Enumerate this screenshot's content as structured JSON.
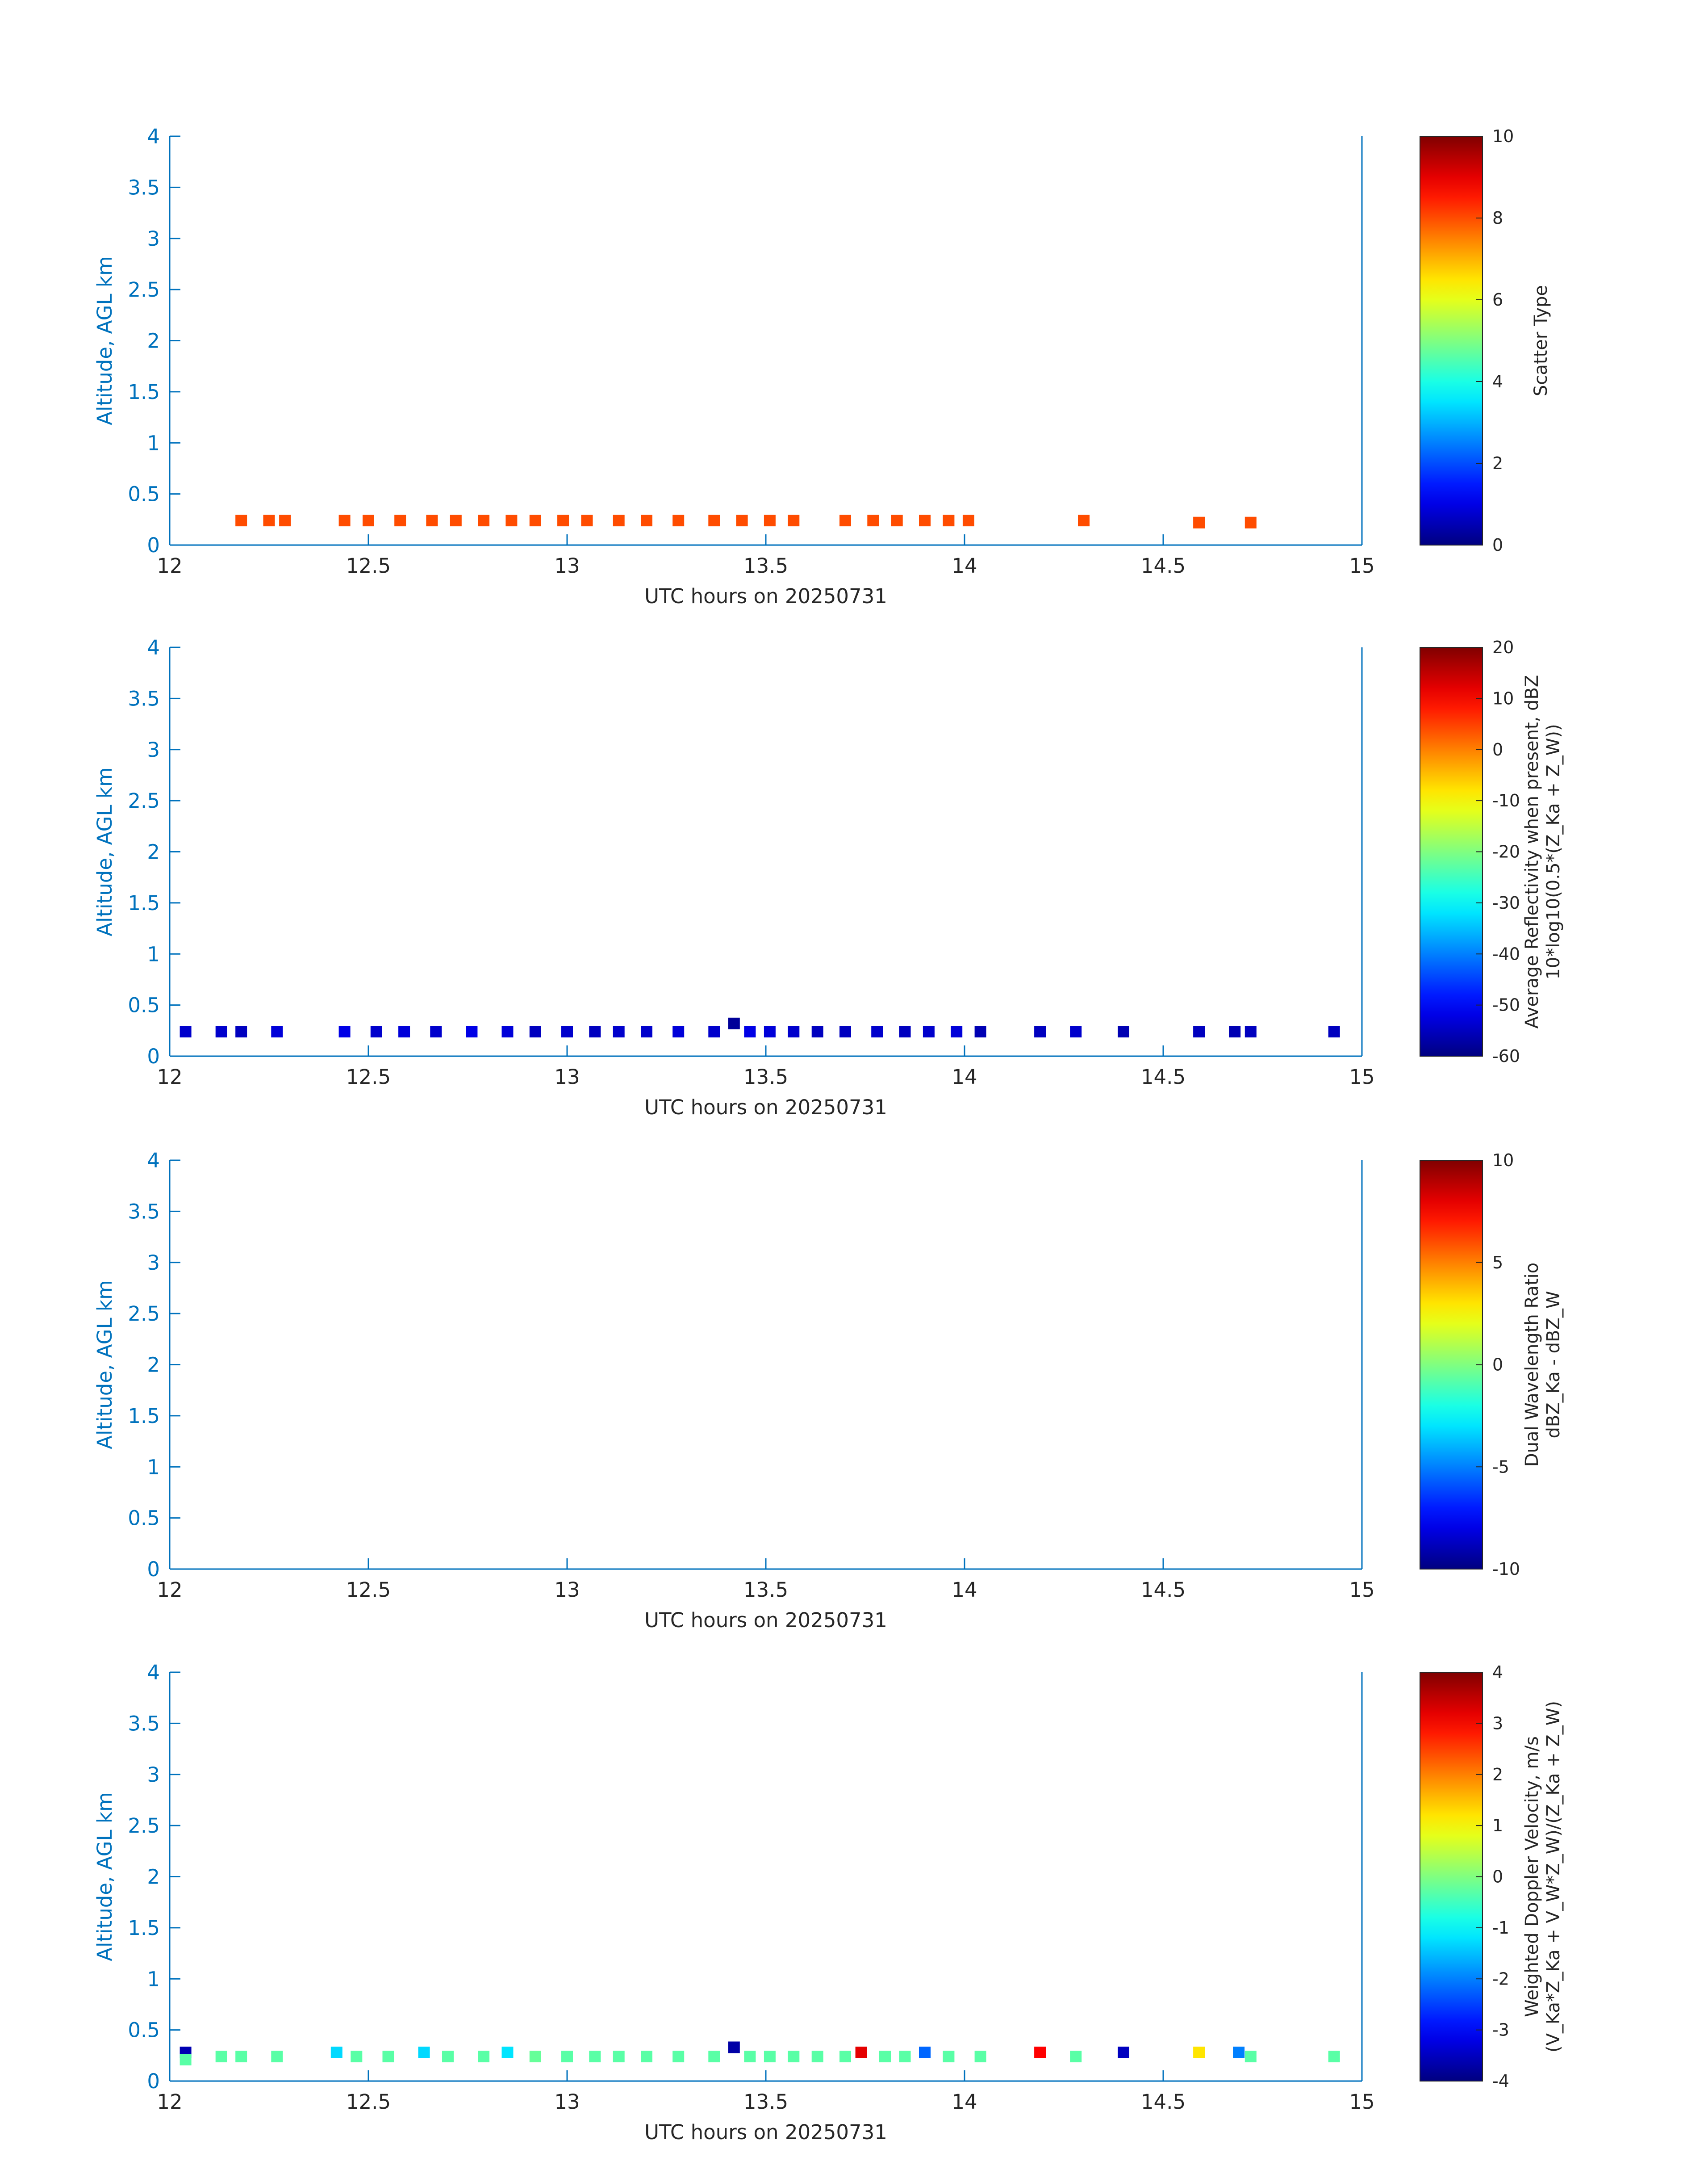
{
  "figure": {
    "x_axis_label": "UTC hours on 20250731",
    "y_axis_label": "Altitude, AGL km",
    "x_ticks": [
      "12",
      "12.5",
      "13",
      "13.5",
      "14",
      "14.5",
      "15"
    ],
    "y_ticks": [
      "0",
      "0.5",
      "1",
      "1.5",
      "2",
      "2.5",
      "3",
      "3.5",
      "4"
    ],
    "colors": {
      "axis": "#0072bd",
      "text": "#262626"
    }
  },
  "chart_data": [
    {
      "type": "heatmap",
      "xlabel": "UTC hours on 20250731",
      "ylabel": "Altitude, AGL km",
      "xlim": [
        12,
        15
      ],
      "ylim": [
        0,
        4
      ],
      "colormap": "jet",
      "colorbar": {
        "label_lines": [
          "Scatter Type"
        ],
        "clim": [
          0,
          10
        ],
        "tick_labels": [
          "0",
          "2",
          "4",
          "6",
          "8",
          "10"
        ],
        "tick_values": [
          0,
          2,
          4,
          6,
          8,
          10
        ]
      },
      "points": [
        {
          "x": 12.18,
          "y": 0.24,
          "v": 8
        },
        {
          "x": 12.25,
          "y": 0.24,
          "v": 8
        },
        {
          "x": 12.29,
          "y": 0.24,
          "v": 8
        },
        {
          "x": 12.44,
          "y": 0.24,
          "v": 8
        },
        {
          "x": 12.5,
          "y": 0.24,
          "v": 8
        },
        {
          "x": 12.58,
          "y": 0.24,
          "v": 8
        },
        {
          "x": 12.66,
          "y": 0.24,
          "v": 8
        },
        {
          "x": 12.72,
          "y": 0.24,
          "v": 8
        },
        {
          "x": 12.79,
          "y": 0.24,
          "v": 8
        },
        {
          "x": 12.86,
          "y": 0.24,
          "v": 8
        },
        {
          "x": 12.92,
          "y": 0.24,
          "v": 8
        },
        {
          "x": 12.99,
          "y": 0.24,
          "v": 8
        },
        {
          "x": 13.05,
          "y": 0.24,
          "v": 8
        },
        {
          "x": 13.13,
          "y": 0.24,
          "v": 8
        },
        {
          "x": 13.2,
          "y": 0.24,
          "v": 8
        },
        {
          "x": 13.28,
          "y": 0.24,
          "v": 8
        },
        {
          "x": 13.37,
          "y": 0.24,
          "v": 8
        },
        {
          "x": 13.44,
          "y": 0.24,
          "v": 8
        },
        {
          "x": 13.51,
          "y": 0.24,
          "v": 8
        },
        {
          "x": 13.57,
          "y": 0.24,
          "v": 8
        },
        {
          "x": 13.7,
          "y": 0.24,
          "v": 8
        },
        {
          "x": 13.77,
          "y": 0.24,
          "v": 8
        },
        {
          "x": 13.83,
          "y": 0.24,
          "v": 8
        },
        {
          "x": 13.9,
          "y": 0.24,
          "v": 8
        },
        {
          "x": 13.96,
          "y": 0.24,
          "v": 8
        },
        {
          "x": 14.01,
          "y": 0.24,
          "v": 8
        },
        {
          "x": 14.3,
          "y": 0.24,
          "v": 8
        },
        {
          "x": 14.59,
          "y": 0.22,
          "v": 8
        },
        {
          "x": 14.72,
          "y": 0.22,
          "v": 8
        }
      ]
    },
    {
      "type": "heatmap",
      "xlabel": "UTC hours on 20250731",
      "ylabel": "Altitude, AGL km",
      "xlim": [
        12,
        15
      ],
      "ylim": [
        0,
        4
      ],
      "colormap": "jet",
      "colorbar": {
        "label_lines": [
          "Average Reflectivity when present, dBZ",
          "10*log10(0.5*(Z_Ka + Z_W))"
        ],
        "clim": [
          -60,
          20
        ],
        "tick_labels": [
          "-60",
          "-50",
          "-40",
          "-30",
          "-20",
          "-10",
          "0",
          "10",
          "20"
        ],
        "tick_values": [
          -60,
          -50,
          -40,
          -30,
          -20,
          -10,
          0,
          10,
          20
        ]
      },
      "points": [
        {
          "x": 12.04,
          "y": 0.24,
          "v": -54
        },
        {
          "x": 12.13,
          "y": 0.24,
          "v": -54
        },
        {
          "x": 12.18,
          "y": 0.24,
          "v": -55
        },
        {
          "x": 12.27,
          "y": 0.24,
          "v": -53
        },
        {
          "x": 12.44,
          "y": 0.24,
          "v": -52
        },
        {
          "x": 12.52,
          "y": 0.24,
          "v": -54
        },
        {
          "x": 12.59,
          "y": 0.24,
          "v": -53
        },
        {
          "x": 12.67,
          "y": 0.24,
          "v": -54
        },
        {
          "x": 12.76,
          "y": 0.24,
          "v": -52
        },
        {
          "x": 12.85,
          "y": 0.24,
          "v": -53
        },
        {
          "x": 12.92,
          "y": 0.24,
          "v": -55
        },
        {
          "x": 13.0,
          "y": 0.24,
          "v": -54
        },
        {
          "x": 13.07,
          "y": 0.24,
          "v": -55
        },
        {
          "x": 13.13,
          "y": 0.24,
          "v": -54
        },
        {
          "x": 13.2,
          "y": 0.24,
          "v": -54
        },
        {
          "x": 13.28,
          "y": 0.24,
          "v": -53
        },
        {
          "x": 13.37,
          "y": 0.24,
          "v": -54
        },
        {
          "x": 13.42,
          "y": 0.32,
          "v": -58
        },
        {
          "x": 13.46,
          "y": 0.24,
          "v": -52
        },
        {
          "x": 13.51,
          "y": 0.24,
          "v": -53
        },
        {
          "x": 13.57,
          "y": 0.24,
          "v": -54
        },
        {
          "x": 13.63,
          "y": 0.24,
          "v": -55
        },
        {
          "x": 13.7,
          "y": 0.24,
          "v": -55
        },
        {
          "x": 13.78,
          "y": 0.24,
          "v": -54
        },
        {
          "x": 13.85,
          "y": 0.24,
          "v": -55
        },
        {
          "x": 13.91,
          "y": 0.24,
          "v": -54
        },
        {
          "x": 13.98,
          "y": 0.24,
          "v": -53
        },
        {
          "x": 14.04,
          "y": 0.24,
          "v": -56
        },
        {
          "x": 14.19,
          "y": 0.24,
          "v": -55
        },
        {
          "x": 14.28,
          "y": 0.24,
          "v": -54
        },
        {
          "x": 14.4,
          "y": 0.24,
          "v": -56
        },
        {
          "x": 14.59,
          "y": 0.24,
          "v": -55
        },
        {
          "x": 14.68,
          "y": 0.24,
          "v": -56
        },
        {
          "x": 14.72,
          "y": 0.24,
          "v": -55
        },
        {
          "x": 14.93,
          "y": 0.24,
          "v": -55
        }
      ]
    },
    {
      "type": "heatmap",
      "xlabel": "UTC hours on 20250731",
      "ylabel": "Altitude, AGL km",
      "xlim": [
        12,
        15
      ],
      "ylim": [
        0,
        4
      ],
      "colormap": "jet",
      "colorbar": {
        "label_lines": [
          "Dual Wavelength Ratio",
          "dBZ_Ka - dBZ_W"
        ],
        "clim": [
          -10,
          10
        ],
        "tick_labels": [
          "-10",
          "-5",
          "0",
          "5",
          "10"
        ],
        "tick_values": [
          -10,
          -5,
          0,
          5,
          10
        ]
      },
      "points": []
    },
    {
      "type": "heatmap",
      "xlabel": "UTC hours on 20250731",
      "ylabel": "Altitude, AGL km",
      "xlim": [
        12,
        15
      ],
      "ylim": [
        0,
        4
      ],
      "colormap": "jet",
      "colorbar": {
        "label_lines": [
          "Weighted Doppler Velocity, m/s",
          "(V_Ka*Z_Ka + V_W*Z_W)/(Z_Ka + Z_W)"
        ],
        "clim": [
          -4,
          4
        ],
        "tick_labels": [
          "-4",
          "-3",
          "-2",
          "-1",
          "0",
          "1",
          "2",
          "3",
          "4"
        ],
        "tick_values": [
          -4,
          -3,
          -2,
          -1,
          0,
          1,
          2,
          3,
          4
        ]
      },
      "points": [
        {
          "x": 12.04,
          "y": 0.28,
          "v": -3.6
        },
        {
          "x": 12.04,
          "y": 0.21,
          "v": -0.3
        },
        {
          "x": 12.13,
          "y": 0.24,
          "v": -0.3
        },
        {
          "x": 12.18,
          "y": 0.24,
          "v": -0.3
        },
        {
          "x": 12.27,
          "y": 0.24,
          "v": -0.3
        },
        {
          "x": 12.42,
          "y": 0.28,
          "v": -1.3
        },
        {
          "x": 12.47,
          "y": 0.24,
          "v": -0.3
        },
        {
          "x": 12.55,
          "y": 0.24,
          "v": -0.3
        },
        {
          "x": 12.64,
          "y": 0.28,
          "v": -1.3
        },
        {
          "x": 12.7,
          "y": 0.24,
          "v": -0.3
        },
        {
          "x": 12.79,
          "y": 0.24,
          "v": -0.3
        },
        {
          "x": 12.85,
          "y": 0.28,
          "v": -1.2
        },
        {
          "x": 12.92,
          "y": 0.24,
          "v": -0.2
        },
        {
          "x": 13.0,
          "y": 0.24,
          "v": -0.3
        },
        {
          "x": 13.07,
          "y": 0.24,
          "v": -0.3
        },
        {
          "x": 13.13,
          "y": 0.24,
          "v": -0.3
        },
        {
          "x": 13.2,
          "y": 0.24,
          "v": -0.3
        },
        {
          "x": 13.28,
          "y": 0.24,
          "v": -0.3
        },
        {
          "x": 13.37,
          "y": 0.24,
          "v": -0.3
        },
        {
          "x": 13.42,
          "y": 0.33,
          "v": -3.7
        },
        {
          "x": 13.46,
          "y": 0.24,
          "v": -0.3
        },
        {
          "x": 13.51,
          "y": 0.24,
          "v": -0.3
        },
        {
          "x": 13.57,
          "y": 0.24,
          "v": -0.3
        },
        {
          "x": 13.63,
          "y": 0.24,
          "v": -0.3
        },
        {
          "x": 13.7,
          "y": 0.24,
          "v": -0.3
        },
        {
          "x": 13.74,
          "y": 0.28,
          "v": 3.2
        },
        {
          "x": 13.8,
          "y": 0.24,
          "v": -0.3
        },
        {
          "x": 13.85,
          "y": 0.24,
          "v": -0.3
        },
        {
          "x": 13.9,
          "y": 0.28,
          "v": -2.2
        },
        {
          "x": 13.96,
          "y": 0.24,
          "v": -0.3
        },
        {
          "x": 14.04,
          "y": 0.24,
          "v": -0.3
        },
        {
          "x": 14.19,
          "y": 0.28,
          "v": 3.0
        },
        {
          "x": 14.28,
          "y": 0.24,
          "v": -0.3
        },
        {
          "x": 14.4,
          "y": 0.28,
          "v": -3.5
        },
        {
          "x": 14.59,
          "y": 0.28,
          "v": 1.2
        },
        {
          "x": 14.69,
          "y": 0.28,
          "v": -2.0
        },
        {
          "x": 14.72,
          "y": 0.24,
          "v": -0.3
        },
        {
          "x": 14.93,
          "y": 0.24,
          "v": -0.3
        }
      ]
    }
  ]
}
